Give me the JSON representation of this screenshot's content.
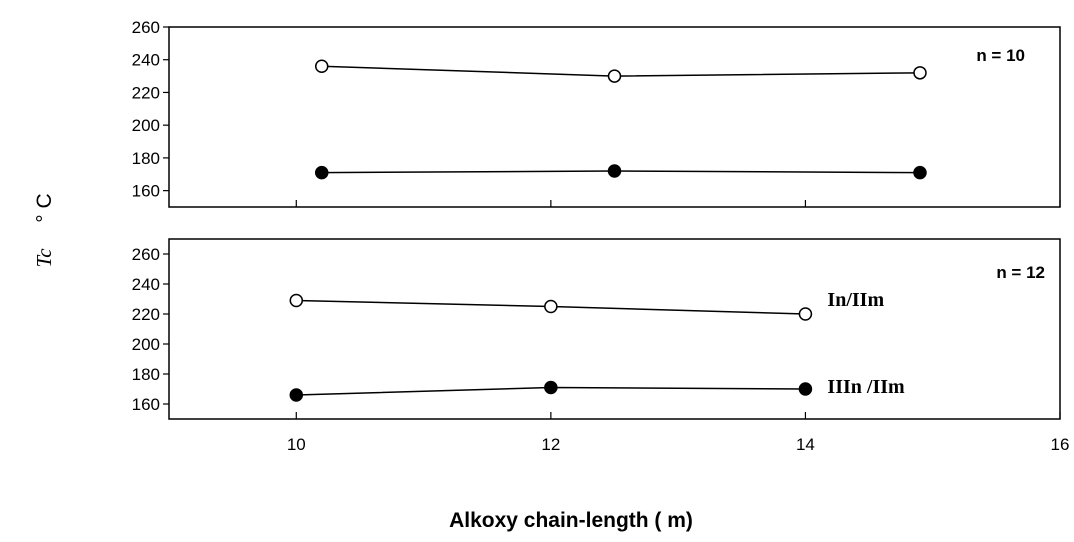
{
  "chart_data": [
    {
      "type": "line",
      "panel_label": "n = 10",
      "x_ticks_label_shown": false,
      "xlim": [
        9,
        16
      ],
      "ylim": [
        150,
        260
      ],
      "y_ticks": [
        160,
        180,
        200,
        220,
        240,
        260
      ],
      "series": [
        {
          "marker": "open-circle",
          "x": [
            10.2,
            12.5,
            14.9
          ],
          "values": [
            236,
            230,
            232
          ]
        },
        {
          "marker": "filled-circle",
          "x": [
            10.2,
            12.5,
            14.9
          ],
          "values": [
            171,
            172,
            171
          ]
        }
      ]
    },
    {
      "type": "line",
      "panel_label": "n = 12",
      "xlim": [
        9,
        16
      ],
      "ylim": [
        150,
        270
      ],
      "x_ticks": [
        10,
        12,
        14,
        16
      ],
      "y_ticks": [
        160,
        180,
        200,
        220,
        240,
        260
      ],
      "series": [
        {
          "name": "In/IIm",
          "marker": "open-circle",
          "x": [
            10,
            12,
            14
          ],
          "values": [
            229,
            225,
            220
          ]
        },
        {
          "name": "IIIn /IIm",
          "marker": "filled-circle",
          "x": [
            10,
            12,
            14
          ],
          "values": [
            166,
            171,
            170
          ]
        }
      ]
    }
  ],
  "xlabel": "Alkoxy chain-length ( m)",
  "ylabel": "Tc",
  "ylabel_unit": "° C"
}
